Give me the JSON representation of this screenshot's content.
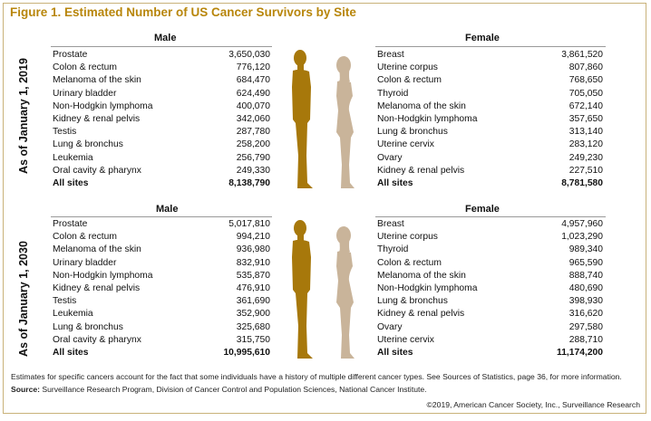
{
  "title": "Figure 1. Estimated Number of US Cancer Survivors by Site",
  "colors": {
    "title": "#b8860b",
    "male_figure": "#a7780b",
    "female_figure": "#c9b49a"
  },
  "sections": [
    {
      "label": "As of January 1, 2019",
      "male_header": "Male",
      "female_header": "Female",
      "male": [
        {
          "site": "Prostate",
          "value": "3,650,030"
        },
        {
          "site": "Colon & rectum",
          "value": "776,120"
        },
        {
          "site": "Melanoma of the skin",
          "value": "684,470"
        },
        {
          "site": "Urinary bladder",
          "value": "624,490"
        },
        {
          "site": "Non-Hodgkin lymphoma",
          "value": "400,070"
        },
        {
          "site": "Kidney & renal pelvis",
          "value": "342,060"
        },
        {
          "site": "Testis",
          "value": "287,780"
        },
        {
          "site": "Lung & bronchus",
          "value": "258,200"
        },
        {
          "site": "Leukemia",
          "value": "256,790"
        },
        {
          "site": "Oral cavity & pharynx",
          "value": "249,330"
        }
      ],
      "male_total": {
        "site": "All sites",
        "value": "8,138,790"
      },
      "female": [
        {
          "site": "Breast",
          "value": "3,861,520"
        },
        {
          "site": "Uterine corpus",
          "value": "807,860"
        },
        {
          "site": "Colon & rectum",
          "value": "768,650"
        },
        {
          "site": "Thyroid",
          "value": "705,050"
        },
        {
          "site": "Melanoma of the skin",
          "value": "672,140"
        },
        {
          "site": "Non-Hodgkin lymphoma",
          "value": "357,650"
        },
        {
          "site": "Lung & bronchus",
          "value": "313,140"
        },
        {
          "site": "Uterine cervix",
          "value": "283,120"
        },
        {
          "site": "Ovary",
          "value": "249,230"
        },
        {
          "site": "Kidney & renal pelvis",
          "value": "227,510"
        }
      ],
      "female_total": {
        "site": "All sites",
        "value": "8,781,580"
      }
    },
    {
      "label": "As of January 1, 2030",
      "male_header": "Male",
      "female_header": "Female",
      "male": [
        {
          "site": "Prostate",
          "value": "5,017,810"
        },
        {
          "site": "Colon & rectum",
          "value": "994,210"
        },
        {
          "site": "Melanoma of the skin",
          "value": "936,980"
        },
        {
          "site": "Urinary bladder",
          "value": "832,910"
        },
        {
          "site": "Non-Hodgkin lymphoma",
          "value": "535,870"
        },
        {
          "site": "Kidney & renal pelvis",
          "value": "476,910"
        },
        {
          "site": "Testis",
          "value": "361,690"
        },
        {
          "site": "Leukemia",
          "value": "352,900"
        },
        {
          "site": "Lung & bronchus",
          "value": "325,680"
        },
        {
          "site": "Oral cavity & pharynx",
          "value": "315,750"
        }
      ],
      "male_total": {
        "site": "All sites",
        "value": "10,995,610"
      },
      "female": [
        {
          "site": "Breast",
          "value": "4,957,960"
        },
        {
          "site": "Uterine corpus",
          "value": "1,023,290"
        },
        {
          "site": "Thyroid",
          "value": "989,340"
        },
        {
          "site": "Colon & rectum",
          "value": "965,590"
        },
        {
          "site": "Melanoma of the skin",
          "value": "888,740"
        },
        {
          "site": "Non-Hodgkin lymphoma",
          "value": "480,690"
        },
        {
          "site": "Lung & bronchus",
          "value": "398,930"
        },
        {
          "site": "Kidney & renal pelvis",
          "value": "316,620"
        },
        {
          "site": "Ovary",
          "value": "297,580"
        },
        {
          "site": "Uterine cervix",
          "value": "288,710"
        }
      ],
      "female_total": {
        "site": "All sites",
        "value": "11,174,200"
      }
    }
  ],
  "footnote": "Estimates for specific cancers account for the fact that some individuals have a history of multiple different cancer types. See Sources of Statistics, page 36, for more information.",
  "source_label": "Source:",
  "source_text": "Surveillance Research Program, Division of Cancer Control and Population Sciences, National Cancer Institute.",
  "copyright": "©2019, American Cancer Society, Inc., Surveillance Research"
}
